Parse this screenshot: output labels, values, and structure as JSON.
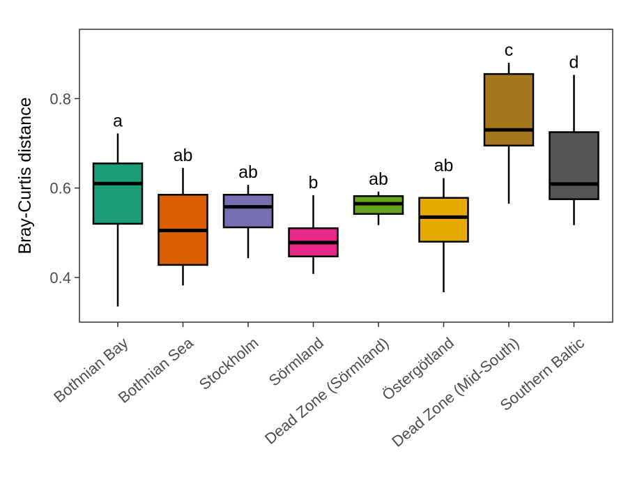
{
  "chart_data": {
    "type": "boxplot",
    "ylabel": "Bray-Curtis distance",
    "xlabel": "",
    "ylim": [
      0.3,
      0.955
    ],
    "yticks": [
      0.4,
      0.6,
      0.8
    ],
    "ytick_labels": [
      "0.4",
      "0.6",
      "0.8"
    ],
    "grid": false,
    "legend": "none",
    "categories": [
      "Bothnian Bay",
      "Bothnian Sea",
      "Stockholm",
      "Sörmland",
      "Dead Zone (Sörmland)",
      "Östergötland",
      "Dead Zone (Mid-South)",
      "Southern Baltic"
    ],
    "boxes": [
      {
        "min": 0.335,
        "q1": 0.52,
        "median": 0.61,
        "q3": 0.655,
        "max": 0.722,
        "color": "#1b9e77",
        "letter": "a"
      },
      {
        "min": 0.382,
        "q1": 0.428,
        "median": 0.505,
        "q3": 0.585,
        "max": 0.645,
        "color": "#d95f02",
        "letter": "ab"
      },
      {
        "min": 0.443,
        "q1": 0.512,
        "median": 0.558,
        "q3": 0.585,
        "max": 0.607,
        "color": "#7570b3",
        "letter": "ab"
      },
      {
        "min": 0.408,
        "q1": 0.447,
        "median": 0.478,
        "q3": 0.51,
        "max": 0.584,
        "color": "#e7298a",
        "letter": "b"
      },
      {
        "min": 0.517,
        "q1": 0.542,
        "median": 0.565,
        "q3": 0.582,
        "max": 0.592,
        "color": "#66a61e",
        "letter": "ab"
      },
      {
        "min": 0.367,
        "q1": 0.48,
        "median": 0.535,
        "q3": 0.578,
        "max": 0.622,
        "color": "#e6ab02",
        "letter": "ab"
      },
      {
        "min": 0.565,
        "q1": 0.695,
        "median": 0.73,
        "q3": 0.855,
        "max": 0.88,
        "color": "#a6761d",
        "letter": "c"
      },
      {
        "min": 0.517,
        "q1": 0.575,
        "median": 0.609,
        "q3": 0.725,
        "max": 0.853,
        "color": "#555555",
        "letter": "d"
      }
    ]
  }
}
